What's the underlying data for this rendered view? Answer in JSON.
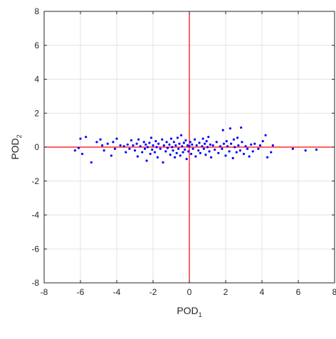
{
  "chart_data": {
    "type": "scatter",
    "xlabel": {
      "base": "POD",
      "sub": "1"
    },
    "ylabel": {
      "base": "POD",
      "sub": "2"
    },
    "xlim": [
      -8,
      8
    ],
    "ylim": [
      -8,
      8
    ],
    "xticks": [
      -8,
      -6,
      -4,
      -2,
      0,
      2,
      4,
      6,
      8
    ],
    "yticks": [
      -8,
      -6,
      -4,
      -2,
      0,
      2,
      4,
      6,
      8
    ],
    "grid": true,
    "reference_lines": {
      "x": 0,
      "y": 0,
      "color": "#ff0000"
    },
    "marker_color": "#0000ff",
    "points": [
      [
        -6.3,
        -0.2
      ],
      [
        -6.1,
        -0.05
      ],
      [
        -6.0,
        0.5
      ],
      [
        -5.9,
        -0.4
      ],
      [
        -5.7,
        0.6
      ],
      [
        -5.4,
        -0.9
      ],
      [
        -5.1,
        0.3
      ],
      [
        -4.9,
        0.45
      ],
      [
        -4.8,
        0.1
      ],
      [
        -4.7,
        -0.2
      ],
      [
        -4.5,
        0.2
      ],
      [
        -4.3,
        -0.5
      ],
      [
        -4.2,
        0.3
      ],
      [
        -4.1,
        -0.1
      ],
      [
        -4.0,
        0.5
      ],
      [
        -3.8,
        0.1
      ],
      [
        -3.6,
        0.05
      ],
      [
        -3.5,
        -0.3
      ],
      [
        -3.4,
        0.15
      ],
      [
        -3.3,
        -0.1
      ],
      [
        -3.2,
        0.4
      ],
      [
        -3.1,
        0.1
      ],
      [
        -3.0,
        -0.2
      ],
      [
        -2.9,
        0.2
      ],
      [
        -2.85,
        -0.55
      ],
      [
        -2.8,
        0.45
      ],
      [
        -2.7,
        0.05
      ],
      [
        -2.6,
        -0.3
      ],
      [
        -2.5,
        0.3
      ],
      [
        -2.45,
        -0.1
      ],
      [
        -2.4,
        0.15
      ],
      [
        -2.35,
        -0.8
      ],
      [
        -2.3,
        0.0
      ],
      [
        -2.2,
        0.25
      ],
      [
        -2.15,
        -0.4
      ],
      [
        -2.1,
        0.55
      ],
      [
        -2.05,
        -0.15
      ],
      [
        -2.0,
        0.1
      ],
      [
        -1.9,
        -0.3
      ],
      [
        -1.85,
        0.35
      ],
      [
        -1.8,
        0.0
      ],
      [
        -1.75,
        -0.6
      ],
      [
        -1.7,
        0.2
      ],
      [
        -1.6,
        -0.1
      ],
      [
        -1.5,
        0.45
      ],
      [
        -1.45,
        -0.9
      ],
      [
        -1.4,
        0.1
      ],
      [
        -1.3,
        -0.25
      ],
      [
        -1.25,
        0.3
      ],
      [
        -1.2,
        -0.05
      ],
      [
        -1.1,
        0.15
      ],
      [
        -1.05,
        -0.45
      ],
      [
        -1.0,
        0.5
      ],
      [
        -0.95,
        0.0
      ],
      [
        -0.9,
        -0.2
      ],
      [
        -0.85,
        0.3
      ],
      [
        -0.8,
        -0.6
      ],
      [
        -0.75,
        0.1
      ],
      [
        -0.7,
        -0.35
      ],
      [
        -0.65,
        0.55
      ],
      [
        -0.6,
        -0.1
      ],
      [
        -0.55,
        0.2
      ],
      [
        -0.5,
        -0.5
      ],
      [
        -0.45,
        0.7
      ],
      [
        -0.4,
        0.05
      ],
      [
        -0.35,
        -0.3
      ],
      [
        -0.3,
        0.25
      ],
      [
        -0.25,
        -0.15
      ],
      [
        -0.2,
        0.4
      ],
      [
        -0.15,
        -0.7
      ],
      [
        -0.1,
        0.1
      ],
      [
        -0.05,
        -0.25
      ],
      [
        0.0,
        0.05
      ],
      [
        0.05,
        0.3
      ],
      [
        0.1,
        -0.4
      ],
      [
        0.15,
        0.15
      ],
      [
        0.2,
        -0.1
      ],
      [
        0.3,
        0.45
      ],
      [
        0.35,
        -0.55
      ],
      [
        0.4,
        0.1
      ],
      [
        0.5,
        -0.2
      ],
      [
        0.55,
        0.25
      ],
      [
        0.6,
        -0.35
      ],
      [
        0.7,
        0.05
      ],
      [
        0.75,
        0.5
      ],
      [
        0.8,
        -0.1
      ],
      [
        0.85,
        0.2
      ],
      [
        0.9,
        -0.45
      ],
      [
        0.95,
        0.35
      ],
      [
        1.0,
        0.0
      ],
      [
        1.05,
        0.6
      ],
      [
        1.1,
        -0.25
      ],
      [
        1.15,
        0.15
      ],
      [
        1.2,
        -0.6
      ],
      [
        1.3,
        0.1
      ],
      [
        1.4,
        -0.15
      ],
      [
        1.5,
        0.3
      ],
      [
        1.6,
        -0.35
      ],
      [
        1.7,
        0.05
      ],
      [
        1.8,
        -0.1
      ],
      [
        1.85,
        1.0
      ],
      [
        1.9,
        0.2
      ],
      [
        2.0,
        -0.5
      ],
      [
        2.05,
        0.35
      ],
      [
        2.1,
        0.05
      ],
      [
        2.2,
        -0.25
      ],
      [
        2.25,
        1.1
      ],
      [
        2.3,
        0.2
      ],
      [
        2.4,
        -0.65
      ],
      [
        2.45,
        0.45
      ],
      [
        2.5,
        0.0
      ],
      [
        2.6,
        -0.3
      ],
      [
        2.65,
        0.55
      ],
      [
        2.7,
        0.1
      ],
      [
        2.8,
        -0.2
      ],
      [
        2.85,
        1.15
      ],
      [
        2.9,
        0.3
      ],
      [
        3.0,
        -0.4
      ],
      [
        3.1,
        0.05
      ],
      [
        3.2,
        -0.1
      ],
      [
        3.3,
        -0.55
      ],
      [
        3.4,
        0.15
      ],
      [
        3.5,
        -0.25
      ],
      [
        3.6,
        0.2
      ],
      [
        3.8,
        -0.1
      ],
      [
        3.9,
        0.1
      ],
      [
        4.05,
        0.35
      ],
      [
        4.2,
        0.7
      ],
      [
        4.3,
        -0.6
      ],
      [
        4.5,
        -0.3
      ],
      [
        4.6,
        0.1
      ],
      [
        5.7,
        -0.1
      ],
      [
        6.4,
        -0.2
      ],
      [
        7.0,
        -0.15
      ]
    ]
  }
}
